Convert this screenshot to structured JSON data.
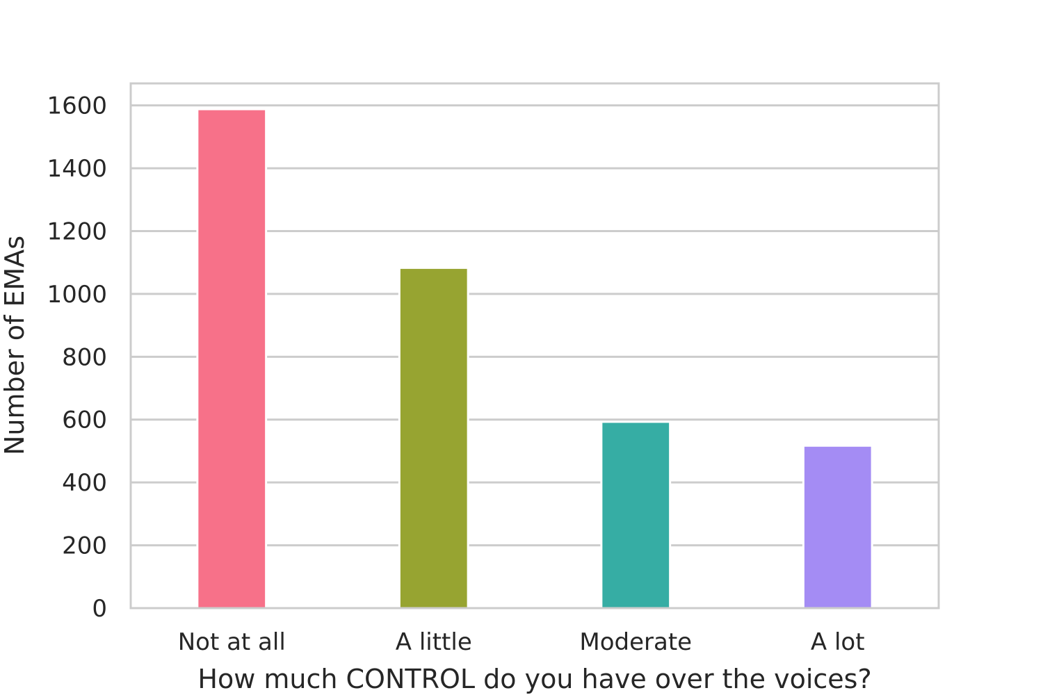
{
  "chart_data": {
    "type": "bar",
    "title": "",
    "xlabel": "How much CONTROL do you have over the voices?",
    "ylabel": "Number of EMAs",
    "categories": [
      "Not at all",
      "A little",
      "Moderate",
      "A lot"
    ],
    "values": [
      1588,
      1083,
      593,
      517
    ],
    "colors": [
      "#f77189",
      "#97a431",
      "#36ada4",
      "#a48cf4"
    ],
    "ylim": [
      0,
      1670
    ],
    "yticks": [
      0,
      200,
      400,
      600,
      800,
      1000,
      1200,
      1400,
      1600
    ],
    "grid": true,
    "grid_axis": "y",
    "legend": "none"
  }
}
